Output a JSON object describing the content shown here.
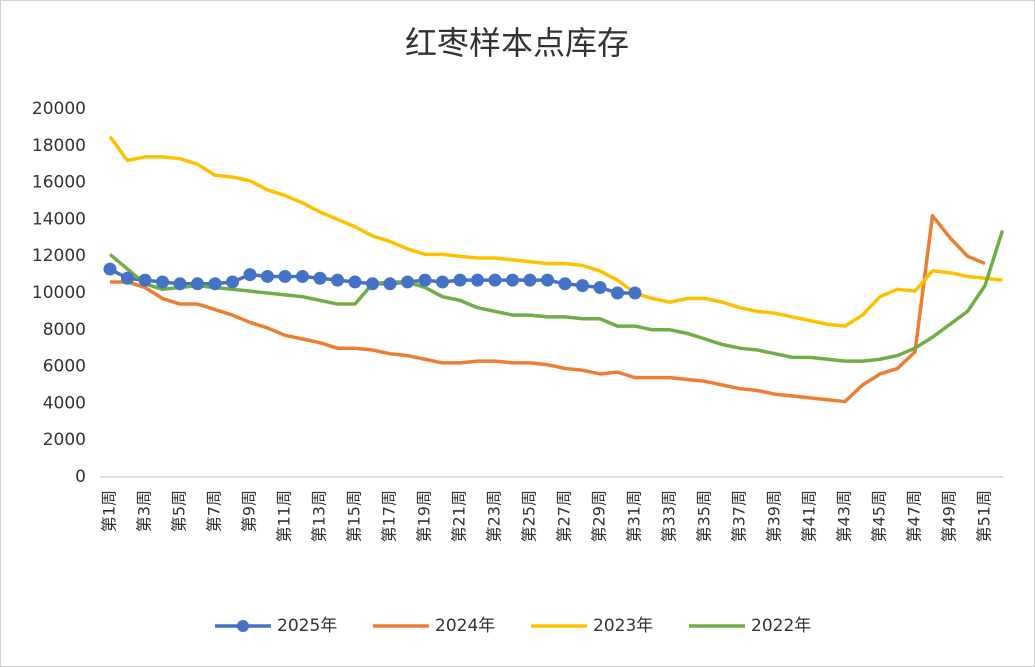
{
  "chart_data": {
    "type": "line",
    "title": "红枣样本点库存",
    "categories": [
      "第1周",
      null,
      "第3周",
      null,
      "第5周",
      null,
      "第7周",
      null,
      "第9周",
      null,
      "第11周",
      null,
      "第13周",
      null,
      "第15周",
      null,
      "第17周",
      null,
      "第19周",
      null,
      "第21周",
      null,
      "第23周",
      null,
      "第25周",
      null,
      "第27周",
      null,
      "第29周",
      null,
      "第31周",
      null,
      "第33周",
      null,
      "第35周",
      null,
      "第37周",
      null,
      "第39周",
      null,
      "第41周",
      null,
      "第43周",
      null,
      "第45周",
      null,
      "第47周",
      null,
      "第49周",
      null,
      "第51周",
      null
    ],
    "series": [
      {
        "name": "2025年",
        "color": "#4472c4",
        "marker": true,
        "values": [
          11300,
          10800,
          10700,
          10600,
          10500,
          10500,
          10500,
          10600,
          11000,
          10900,
          10900,
          10900,
          10800,
          10700,
          10600,
          10500,
          10500,
          10600,
          10700,
          10600,
          10700,
          10700,
          10700,
          10700,
          10700,
          10700,
          10500,
          10400,
          10300,
          10000,
          10000,
          null,
          null,
          null,
          null,
          null,
          null,
          null,
          null,
          null,
          null,
          null,
          null,
          null,
          null,
          null,
          null,
          null,
          null,
          null,
          null,
          null
        ]
      },
      {
        "name": "2024年",
        "color": "#ed7d31",
        "marker": false,
        "values": [
          10600,
          10600,
          10300,
          9700,
          9400,
          9400,
          9100,
          8800,
          8400,
          8100,
          7700,
          7500,
          7300,
          7000,
          7000,
          6900,
          6700,
          6600,
          6400,
          6200,
          6200,
          6300,
          6300,
          6200,
          6200,
          6100,
          5900,
          5800,
          5600,
          5700,
          5400,
          5400,
          5400,
          5300,
          5200,
          5000,
          4800,
          4700,
          4500,
          4400,
          4300,
          4200,
          4100,
          5000,
          5600,
          5900,
          6800,
          14200,
          13000,
          12000,
          11600,
          null
        ]
      },
      {
        "name": "2023年",
        "color": "#ffc000",
        "marker": false,
        "values": [
          18500,
          17200,
          17400,
          17400,
          17300,
          17000,
          16400,
          16300,
          16100,
          15600,
          15300,
          14900,
          14400,
          14000,
          13600,
          13100,
          12800,
          12400,
          12100,
          12100,
          12000,
          11900,
          11900,
          11800,
          11700,
          11600,
          11600,
          11500,
          11200,
          10700,
          10000,
          9700,
          9500,
          9700,
          9700,
          9500,
          9200,
          9000,
          8900,
          8700,
          8500,
          8300,
          8200,
          8800,
          9800,
          10200,
          10100,
          11200,
          11100,
          10900,
          10800,
          10700
        ]
      },
      {
        "name": "2022年",
        "color": "#70ad47",
        "marker": false,
        "values": [
          12100,
          11300,
          10500,
          10200,
          10300,
          10400,
          10300,
          10200,
          10100,
          10000,
          9900,
          9800,
          9600,
          9400,
          9400,
          10500,
          10600,
          10600,
          10300,
          9800,
          9600,
          9200,
          9000,
          8800,
          8800,
          8700,
          8700,
          8600,
          8600,
          8200,
          8200,
          8000,
          8000,
          7800,
          7500,
          7200,
          7000,
          6900,
          6700,
          6500,
          6500,
          6400,
          6300,
          6300,
          6400,
          6600,
          7000,
          7600,
          8300,
          9000,
          10400,
          13400
        ]
      }
    ],
    "ylim": [
      0,
      20000
    ],
    "yticks": [
      0,
      2000,
      4000,
      6000,
      8000,
      10000,
      12000,
      14000,
      16000,
      18000,
      20000
    ],
    "grid": false,
    "legend": "bottom"
  }
}
